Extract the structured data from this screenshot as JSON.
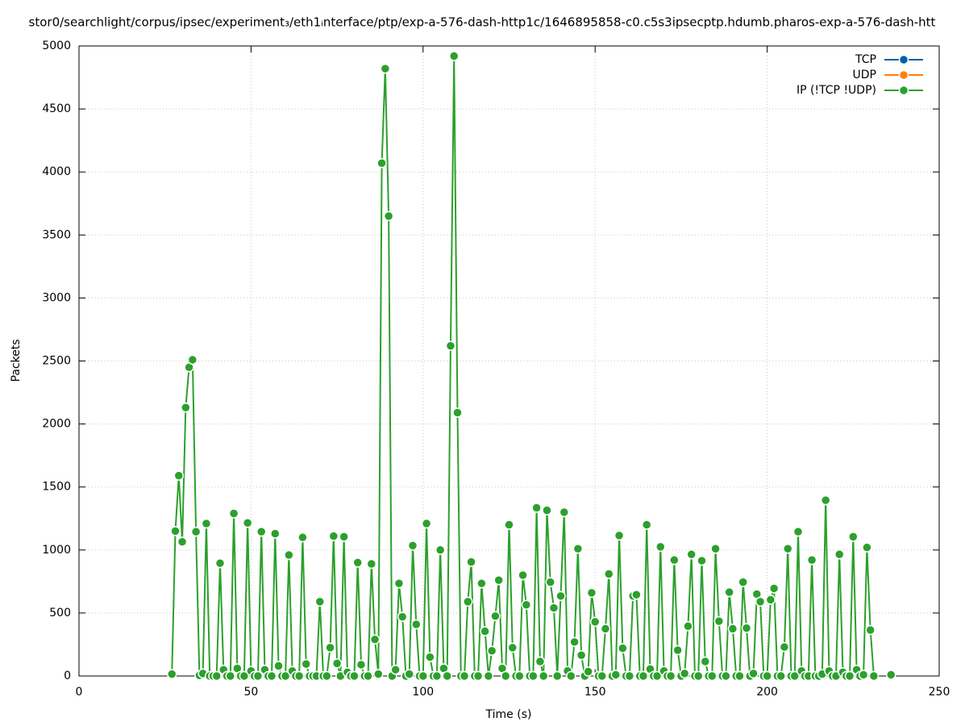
{
  "chart_data": {
    "type": "line",
    "title": "stor0/searchlight/corpus/ipsec/experiment₃/eth1ᵢnterface/ptp/exp-a-576-dash-http1c/1646895858-c0.c5s3ipsecptp.hdumb.pharos-exp-a-576-dash-htt",
    "x_label": "Time (s)",
    "y_label": "Packets",
    "xlim": [
      0,
      250
    ],
    "xticks": [
      0,
      50,
      100,
      150,
      200,
      250
    ],
    "ylim": [
      0,
      5000
    ],
    "yticks": [
      0,
      500,
      1000,
      1500,
      2000,
      2500,
      3000,
      3500,
      4000,
      4500,
      5000
    ],
    "grid": true,
    "legend": "top-right",
    "x": [
      27,
      28,
      29,
      30,
      31,
      32,
      33,
      34,
      35,
      36,
      37,
      38,
      39,
      40,
      41,
      42,
      43,
      44,
      45,
      46,
      47,
      48,
      49,
      50,
      51,
      52,
      53,
      54,
      55,
      56,
      57,
      58,
      59,
      60,
      61,
      62,
      63,
      64,
      65,
      66,
      67,
      68,
      69,
      70,
      71,
      72,
      73,
      74,
      75,
      76,
      77,
      78,
      79,
      80,
      81,
      82,
      83,
      84,
      85,
      86,
      87,
      88,
      89,
      90,
      91,
      92,
      93,
      94,
      95,
      96,
      97,
      98,
      99,
      100,
      101,
      102,
      103,
      104,
      105,
      106,
      107,
      108,
      109,
      110,
      111,
      112,
      113,
      114,
      115,
      116,
      117,
      118,
      119,
      120,
      121,
      122,
      123,
      124,
      125,
      126,
      127,
      128,
      129,
      130,
      131,
      132,
      133,
      134,
      135,
      136,
      137,
      138,
      139,
      140,
      141,
      142,
      143,
      144,
      145,
      146,
      147,
      148,
      149,
      150,
      151,
      152,
      153,
      154,
      155,
      156,
      157,
      158,
      159,
      160,
      161,
      162,
      163,
      164,
      165,
      166,
      167,
      168,
      169,
      170,
      171,
      172,
      173,
      174,
      175,
      176,
      177,
      178,
      179,
      180,
      181,
      182,
      183,
      184,
      185,
      186,
      187,
      188,
      189,
      190,
      191,
      192,
      193,
      194,
      195,
      196,
      197,
      198,
      199,
      200,
      201,
      202,
      203,
      204,
      205,
      206,
      207,
      208,
      209,
      210,
      211,
      212,
      213,
      214,
      215,
      216,
      217,
      218,
      219,
      220,
      221,
      222,
      223,
      224,
      225,
      226,
      227,
      228,
      229,
      230,
      231,
      232,
      233,
      234,
      235,
      236
    ],
    "series": [
      {
        "name": "TCP",
        "color": "#0060ad",
        "values": [
          null,
          null,
          null,
          null,
          null,
          null,
          null,
          null,
          null,
          null,
          null,
          null,
          null,
          null,
          null,
          null,
          null,
          null,
          null,
          null,
          null,
          null,
          null,
          null,
          null,
          null,
          null,
          null,
          null,
          null,
          null,
          null,
          null,
          null,
          null,
          null,
          null,
          null,
          null,
          null,
          null,
          null,
          null,
          null,
          null,
          null,
          null,
          null,
          null,
          null,
          null,
          null,
          null,
          null,
          null,
          null,
          null,
          null,
          null,
          null,
          null,
          null,
          null,
          null,
          null,
          null,
          null,
          null,
          null,
          null,
          null,
          null,
          null,
          null,
          null,
          null,
          null,
          null,
          null,
          null,
          null,
          null,
          null,
          null,
          null,
          null,
          null,
          null,
          null,
          null,
          null,
          null,
          null,
          null,
          null,
          null,
          null,
          null,
          null,
          null,
          null,
          null,
          null,
          null,
          null,
          null,
          null,
          null,
          null,
          null,
          null,
          null,
          null,
          null,
          null,
          null,
          null,
          null,
          null,
          null,
          null,
          null,
          null,
          null,
          null,
          null,
          null,
          null,
          null,
          null,
          null,
          null,
          null,
          null,
          null,
          null,
          null,
          null,
          null,
          null,
          null,
          null,
          null,
          null,
          null,
          null,
          null,
          null,
          null,
          null,
          null,
          null,
          null,
          null,
          null,
          null,
          null,
          null,
          null,
          null,
          null,
          null,
          null,
          null,
          null,
          null,
          null,
          null,
          null,
          null,
          null,
          null,
          null,
          null,
          null,
          null,
          null,
          null,
          null,
          null,
          null,
          null,
          null,
          null,
          null,
          null,
          null,
          null,
          null,
          null,
          null,
          null,
          null,
          null,
          null,
          null,
          null,
          null,
          null,
          null,
          null,
          null,
          null,
          null,
          null,
          null,
          null,
          null,
          null,
          null
        ]
      },
      {
        "name": "UDP",
        "color": "#ff7f0e",
        "values": [
          null,
          null,
          null,
          null,
          null,
          null,
          null,
          null,
          null,
          null,
          null,
          null,
          null,
          null,
          null,
          null,
          null,
          null,
          null,
          null,
          null,
          null,
          null,
          null,
          null,
          null,
          null,
          null,
          null,
          null,
          null,
          null,
          null,
          null,
          null,
          null,
          null,
          null,
          null,
          null,
          null,
          null,
          null,
          null,
          null,
          null,
          null,
          null,
          null,
          null,
          null,
          null,
          null,
          null,
          null,
          null,
          null,
          null,
          null,
          null,
          null,
          null,
          null,
          null,
          null,
          null,
          null,
          null,
          null,
          null,
          null,
          null,
          null,
          null,
          null,
          null,
          null,
          null,
          null,
          null,
          null,
          null,
          null,
          null,
          null,
          null,
          null,
          null,
          null,
          null,
          null,
          null,
          null,
          null,
          null,
          null,
          null,
          null,
          null,
          null,
          null,
          null,
          null,
          null,
          null,
          null,
          null,
          null,
          null,
          null,
          null,
          null,
          null,
          null,
          null,
          null,
          null,
          null,
          null,
          null,
          null,
          null,
          null,
          null,
          null,
          null,
          null,
          null,
          null,
          null,
          null,
          null,
          null,
          null,
          null,
          null,
          null,
          null,
          null,
          null,
          null,
          null,
          null,
          null,
          null,
          null,
          null,
          null,
          null,
          null,
          null,
          null,
          null,
          null,
          null,
          null,
          null,
          null,
          null,
          null,
          null,
          null,
          null,
          null,
          null,
          null,
          null,
          null,
          null,
          null,
          null,
          null,
          null,
          null,
          null,
          null,
          null,
          null,
          null,
          null,
          null,
          null,
          null,
          null,
          null,
          null,
          null,
          null,
          null,
          null,
          null,
          null,
          null,
          null,
          null,
          null,
          null,
          null,
          null,
          null,
          null,
          null,
          null,
          null,
          null,
          null,
          null,
          null,
          null,
          null
        ]
      },
      {
        "name": "IP (!TCP  !UDP)",
        "color": "#2ca02c",
        "values": [
          15,
          1150,
          1590,
          1065,
          2130,
          2450,
          2510,
          1145,
          5,
          20,
          1210,
          0,
          0,
          0,
          895,
          50,
          0,
          0,
          1290,
          60,
          0,
          0,
          1215,
          40,
          0,
          0,
          1145,
          50,
          0,
          0,
          1130,
          80,
          0,
          0,
          960,
          40,
          0,
          0,
          1100,
          95,
          0,
          0,
          0,
          590,
          0,
          0,
          225,
          1110,
          100,
          0,
          1105,
          30,
          0,
          0,
          900,
          90,
          0,
          0,
          890,
          290,
          15,
          4070,
          4820,
          3650,
          0,
          50,
          735,
          470,
          0,
          15,
          1035,
          410,
          0,
          0,
          1210,
          150,
          0,
          0,
          1000,
          60,
          0,
          2620,
          4920,
          2090,
          0,
          0,
          590,
          905,
          0,
          0,
          735,
          355,
          0,
          200,
          475,
          760,
          60,
          0,
          1200,
          225,
          0,
          0,
          800,
          565,
          0,
          0,
          1335,
          115,
          0,
          1315,
          745,
          540,
          0,
          635,
          1300,
          40,
          0,
          270,
          1010,
          165,
          0,
          35,
          660,
          430,
          0,
          0,
          375,
          810,
          0,
          10,
          1115,
          220,
          0,
          0,
          635,
          645,
          0,
          0,
          1200,
          55,
          0,
          0,
          1025,
          40,
          0,
          0,
          920,
          205,
          0,
          20,
          395,
          965,
          0,
          0,
          915,
          115,
          0,
          0,
          1010,
          435,
          0,
          0,
          665,
          375,
          0,
          0,
          745,
          380,
          0,
          20,
          650,
          590,
          0,
          0,
          605,
          695,
          0,
          0,
          230,
          1010,
          0,
          0,
          1145,
          40,
          0,
          0,
          920,
          0,
          0,
          15,
          1395,
          40,
          0,
          0,
          965,
          30,
          0,
          0,
          1105,
          50,
          0,
          10,
          1020,
          365,
          0,
          null,
          null,
          null,
          null,
          10
        ]
      }
    ]
  }
}
